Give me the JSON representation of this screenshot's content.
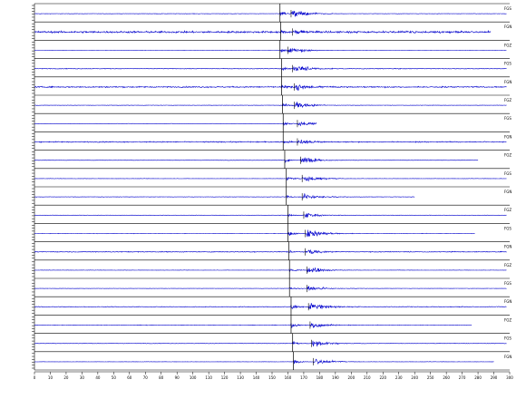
{
  "chart_data": {
    "type": "line",
    "title": "",
    "xlabel": "",
    "ylabel": "",
    "xlim": [
      0,
      300
    ],
    "x_ticks": [
      0,
      10,
      20,
      30,
      40,
      50,
      60,
      70,
      80,
      90,
      100,
      110,
      120,
      130,
      140,
      150,
      160,
      170,
      180,
      190,
      200,
      210,
      220,
      230,
      240,
      250,
      260,
      270,
      280,
      290,
      300
    ],
    "tick_labels": [
      "0",
      "10",
      "20",
      "30",
      "40",
      "50",
      "60",
      "70",
      "80",
      "90",
      "100",
      "110",
      "120",
      "130",
      "140",
      "150",
      "160",
      "170",
      "180",
      "190",
      "200",
      "210",
      "220",
      "230",
      "240",
      "250",
      "260",
      "270",
      "280",
      "290",
      "300"
    ],
    "grid": false,
    "trace_color": "#0000cc",
    "pick_color": "#000000",
    "traces": [
      {
        "name": "FGS",
        "p_time": 155.0,
        "s_time": 162.0,
        "amp": 1.0,
        "noise": 0.04,
        "end": 298
      },
      {
        "name": "FGN",
        "p_time": 155.5,
        "s_time": 163.0,
        "amp": 0.5,
        "noise": 0.18,
        "end": 288
      },
      {
        "name": "FGZ",
        "p_time": 155.0,
        "s_time": 160.0,
        "amp": 0.8,
        "noise": 0.03,
        "end": 298
      },
      {
        "name": "FGS",
        "p_time": 156.0,
        "s_time": 163.0,
        "amp": 1.0,
        "noise": 0.06,
        "end": 298
      },
      {
        "name": "FGN",
        "p_time": 156.0,
        "s_time": 164.0,
        "amp": 0.9,
        "noise": 0.12,
        "end": 298
      },
      {
        "name": "FGZ",
        "p_time": 156.5,
        "s_time": 164.0,
        "amp": 0.8,
        "noise": 0.04,
        "end": 298
      },
      {
        "name": "FGS",
        "p_time": 157.0,
        "s_time": 166.0,
        "amp": 0.6,
        "noise": 0.02,
        "end": 178
      },
      {
        "name": "FGN",
        "p_time": 157.0,
        "s_time": 166.0,
        "amp": 0.6,
        "noise": 0.1,
        "end": 298
      },
      {
        "name": "FGZ",
        "p_time": 158.0,
        "s_time": 168.0,
        "amp": 0.8,
        "noise": 0.03,
        "end": 280
      },
      {
        "name": "FGS",
        "p_time": 159.0,
        "s_time": 169.0,
        "amp": 0.8,
        "noise": 0.03,
        "end": 298
      },
      {
        "name": "FGN",
        "p_time": 159.0,
        "s_time": 169.0,
        "amp": 0.7,
        "noise": 0.04,
        "end": 240
      },
      {
        "name": "FGZ",
        "p_time": 160.0,
        "s_time": 170.0,
        "amp": 0.6,
        "noise": 0.03,
        "end": 298
      },
      {
        "name": "FGS",
        "p_time": 160.0,
        "s_time": 171.0,
        "amp": 1.0,
        "noise": 0.04,
        "end": 278
      },
      {
        "name": "FGN",
        "p_time": 160.5,
        "s_time": 171.0,
        "amp": 0.6,
        "noise": 0.08,
        "end": 298
      },
      {
        "name": "FGZ",
        "p_time": 161.0,
        "s_time": 172.0,
        "amp": 0.8,
        "noise": 0.03,
        "end": 298
      },
      {
        "name": "FGS",
        "p_time": 161.0,
        "s_time": 172.0,
        "amp": 0.6,
        "noise": 0.03,
        "end": 298
      },
      {
        "name": "FGN",
        "p_time": 162.0,
        "s_time": 173.0,
        "amp": 1.0,
        "noise": 0.06,
        "end": 298
      },
      {
        "name": "FGZ",
        "p_time": 162.0,
        "s_time": 174.0,
        "amp": 0.9,
        "noise": 0.05,
        "end": 276
      },
      {
        "name": "FGS",
        "p_time": 163.0,
        "s_time": 175.0,
        "amp": 0.9,
        "noise": 0.04,
        "end": 298
      },
      {
        "name": "FGN",
        "p_time": 163.5,
        "s_time": 176.0,
        "amp": 0.8,
        "noise": 0.03,
        "end": 290
      }
    ]
  }
}
